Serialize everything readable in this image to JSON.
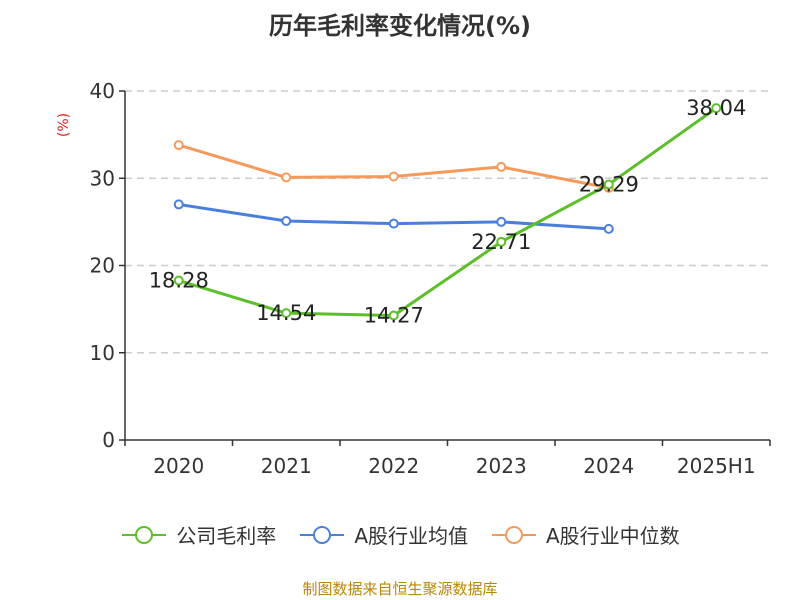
{
  "chart_data": {
    "type": "line",
    "title": "历年毛利率变化情况(%)",
    "ylabel": "(%)",
    "xlabel": "",
    "categories": [
      "2020",
      "2021",
      "2022",
      "2023",
      "2024",
      "2025H1"
    ],
    "ylim": [
      0,
      40
    ],
    "yticks": [
      0,
      10,
      20,
      30,
      40
    ],
    "grid": "horizontal dashed",
    "legend_position": "bottom",
    "series": [
      {
        "name": "公司毛利率",
        "color": "#5cbf2a",
        "values": [
          18.28,
          14.54,
          14.27,
          22.71,
          29.29,
          38.04
        ],
        "labels": [
          "18.28",
          "14.54",
          "14.27",
          "22.71",
          "29.29",
          "38.04"
        ]
      },
      {
        "name": "A股行业均值",
        "color": "#4a7fdc",
        "values": [
          27.0,
          25.1,
          24.8,
          25.0,
          24.2,
          null
        ]
      },
      {
        "name": "A股行业中位数",
        "color": "#f59a5b",
        "values": [
          33.8,
          30.1,
          30.2,
          31.3,
          28.9,
          null
        ]
      }
    ],
    "source": "制图数据来自恒生聚源数据库",
    "ylabel_color": "#e02020"
  }
}
